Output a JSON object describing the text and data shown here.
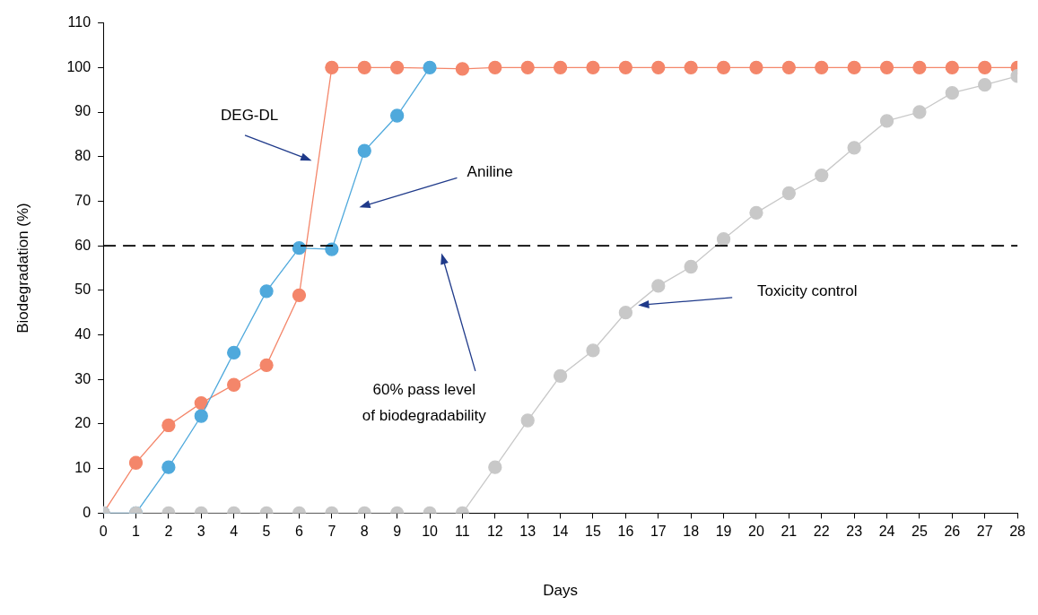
{
  "chart_data": {
    "type": "line",
    "xlabel": "Days",
    "ylabel": "Biodegradation (%)",
    "xlim": [
      0,
      28
    ],
    "xticks": [
      0,
      1,
      2,
      3,
      4,
      5,
      6,
      7,
      8,
      9,
      10,
      11,
      12,
      13,
      14,
      15,
      16,
      17,
      18,
      19,
      20,
      21,
      22,
      23,
      24,
      25,
      26,
      27,
      28
    ],
    "ylim": [
      0,
      110
    ],
    "yticks": [
      0,
      10,
      20,
      30,
      40,
      50,
      60,
      70,
      80,
      90,
      100,
      110
    ],
    "grid": false,
    "legend": false,
    "marker": "circle",
    "line_style": "solid",
    "series": [
      {
        "color": "#f4866a",
        "x": [
          0,
          1,
          2,
          3,
          4,
          5,
          6,
          7,
          8,
          9,
          10,
          11,
          12,
          13,
          14,
          15,
          16,
          17,
          18,
          19,
          20,
          21,
          22,
          23,
          24,
          25,
          26,
          27,
          28
        ],
        "values": [
          0,
          11.3,
          19.7,
          24.7,
          28.8,
          33.2,
          48.9,
          100,
          100,
          100,
          null,
          99.7,
          100,
          100,
          100,
          100,
          100,
          100,
          100,
          100,
          100,
          100,
          100,
          100,
          100,
          100,
          100,
          100,
          100
        ]
      },
      {
        "color": "#4fa9dc",
        "x": [
          0,
          1,
          2,
          3,
          4,
          5,
          6,
          7,
          8,
          9,
          10
        ],
        "values": [
          0,
          0,
          10.3,
          21.8,
          36,
          49.8,
          59.5,
          59.2,
          81.3,
          89.2,
          100
        ]
      },
      {
        "color": "#c8c8c8",
        "x": [
          0,
          1,
          2,
          3,
          4,
          5,
          6,
          7,
          8,
          9,
          10,
          11,
          12,
          13,
          14,
          15,
          16,
          17,
          18,
          19,
          20,
          21,
          22,
          23,
          24,
          25,
          26,
          27,
          28
        ],
        "values": [
          0,
          0,
          0,
          0,
          0,
          0,
          0,
          0,
          0,
          0,
          0,
          0,
          10.3,
          20.8,
          30.8,
          36.5,
          45,
          51,
          55.3,
          61.5,
          67.4,
          71.8,
          75.8,
          82,
          88,
          90,
          94.3,
          96.1,
          98.1
        ]
      }
    ],
    "ref_lines": [
      {
        "axis": "y",
        "value": 60,
        "color": "#000000",
        "line_style": "dashed"
      }
    ],
    "annotations": [
      "DEG-DL",
      "Aniline",
      "Toxicity control",
      "60% pass level of biodegradability"
    ]
  }
}
